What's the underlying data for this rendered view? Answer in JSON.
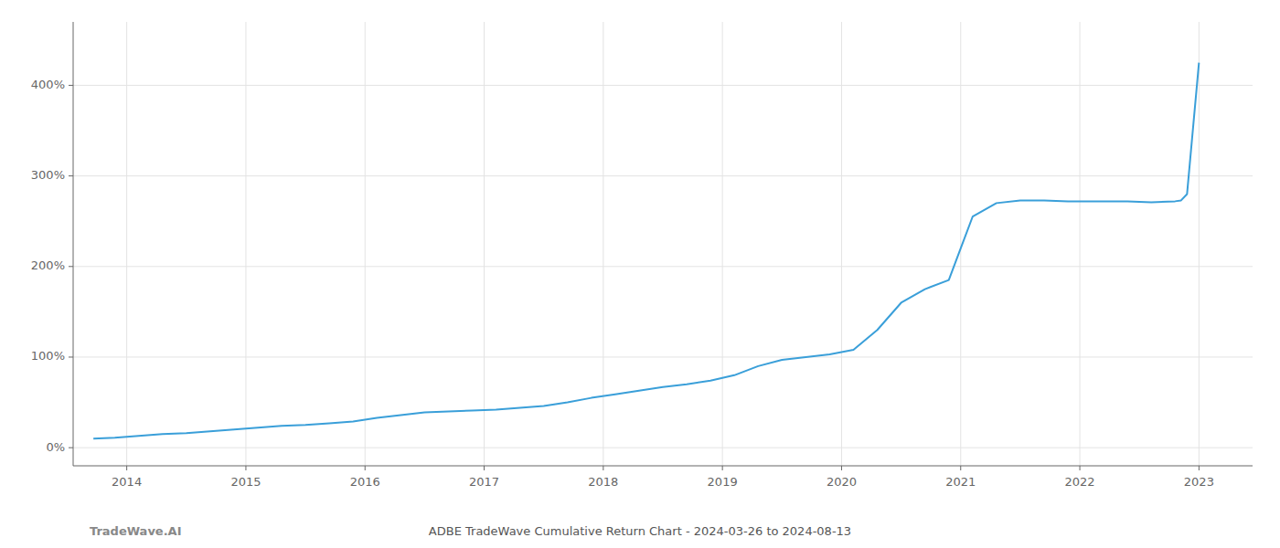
{
  "chart_data": {
    "type": "line",
    "title": "ADBE TradeWave Cumulative Return Chart - 2024-03-26 to 2024-08-13",
    "annotations": [
      "TradeWave.AI"
    ],
    "color": "#3a9fd9",
    "grid": true,
    "x": [
      2013.72,
      2013.9,
      2014.1,
      2014.3,
      2014.5,
      2014.7,
      2014.9,
      2015.1,
      2015.3,
      2015.5,
      2015.7,
      2015.9,
      2016.1,
      2016.3,
      2016.5,
      2016.7,
      2016.9,
      2017.1,
      2017.3,
      2017.5,
      2017.7,
      2017.9,
      2018.1,
      2018.3,
      2018.5,
      2018.7,
      2018.9,
      2019.1,
      2019.3,
      2019.5,
      2019.7,
      2019.9,
      2020.1,
      2020.3,
      2020.5,
      2020.7,
      2020.9,
      2021.0,
      2021.1,
      2021.3,
      2021.5,
      2021.7,
      2021.9,
      2022.0,
      2022.2,
      2022.4,
      2022.6,
      2022.8,
      2022.85,
      2022.9,
      2023.0
    ],
    "values": [
      10,
      11,
      13,
      15,
      16,
      18,
      20,
      22,
      24,
      25,
      27,
      29,
      33,
      36,
      39,
      40,
      41,
      42,
      44,
      46,
      50,
      55,
      59,
      63,
      67,
      70,
      74,
      80,
      90,
      97,
      100,
      103,
      108,
      130,
      160,
      175,
      185,
      220,
      255,
      270,
      273,
      273,
      272,
      272,
      272,
      272,
      271,
      272,
      273,
      280,
      425
    ],
    "xlim": [
      2013.55,
      2023.45
    ],
    "xticks": [
      2014,
      2015,
      2016,
      2017,
      2018,
      2019,
      2020,
      2021,
      2022,
      2023
    ],
    "ylim": [
      -20,
      470
    ],
    "yticks": [
      {
        "value": 0,
        "label": "0%"
      },
      {
        "value": 100,
        "label": "100%"
      },
      {
        "value": 200,
        "label": "200%"
      },
      {
        "value": 300,
        "label": "300%"
      },
      {
        "value": 400,
        "label": "400%"
      }
    ]
  }
}
